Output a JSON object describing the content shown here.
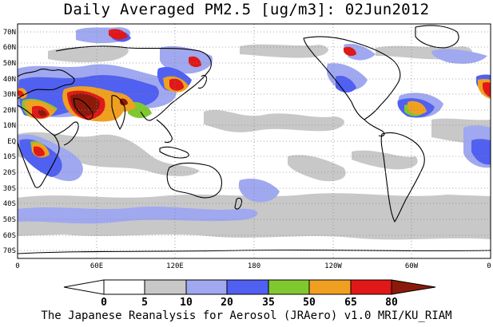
{
  "title": "Daily Averaged PM2.5 [ug/m3]: 02Jun2012",
  "footer": "The Japanese Reanalysis for Aerosol (JRAero) v1.0 MRI/KU_RIAM",
  "lat_labels": [
    "70N",
    "60N",
    "50N",
    "40N",
    "30N",
    "20N",
    "10N",
    "EQ",
    "10S",
    "20S",
    "30S",
    "40S",
    "50S",
    "60S",
    "70S"
  ],
  "lon_labels": [
    "0",
    "60E",
    "120E",
    "180",
    "120W",
    "60W",
    "0"
  ],
  "colorbar": {
    "ticks": [
      "0",
      "5",
      "10",
      "20",
      "35",
      "50",
      "65",
      "80"
    ],
    "colors": [
      "#ffffff",
      "#c8c8c8",
      "#a0a8f0",
      "#5060f0",
      "#80c830",
      "#f0a020",
      "#e01818",
      "#8b1a0a"
    ]
  },
  "legend": {
    "clean": "#ffffff",
    "light": "#c8c8c8",
    "moderate": "#a0a8f0",
    "elevated": "#5060f0",
    "high": "#80c830",
    "very_high": "#f0a020",
    "severe": "#e01818",
    "extreme": "#8b1a0a"
  }
}
